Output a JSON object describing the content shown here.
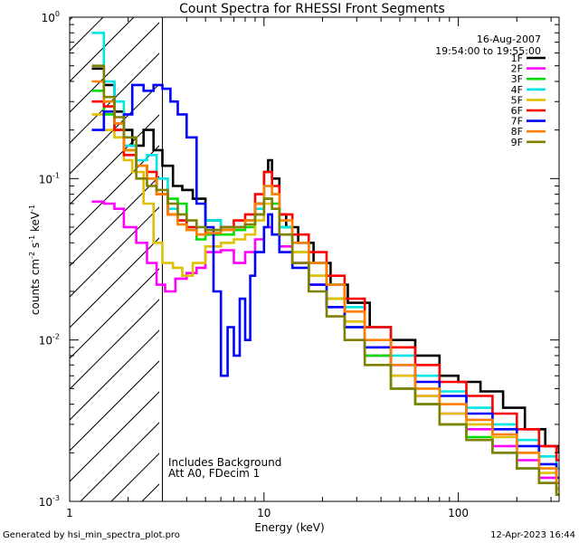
{
  "chart_data": {
    "type": "line",
    "title": "Count Spectra for RHESSI Front Segments",
    "xlabel": "Energy (keV)",
    "ylabel_parts": [
      "counts cm",
      "-2",
      " s",
      "-1",
      " keV",
      "-1"
    ],
    "xscale": "log",
    "yscale": "log",
    "xlim": [
      1,
      330
    ],
    "ylim": [
      0.001,
      1.0
    ],
    "x_ticks": [
      {
        "value": 10,
        "label": "10"
      },
      {
        "value": 100,
        "label": "100"
      }
    ],
    "y_ticks": [
      {
        "value": 0.001,
        "base": "10",
        "exp": "-3"
      },
      {
        "value": 0.01,
        "base": "10",
        "exp": "-2"
      },
      {
        "value": 0.1,
        "base": "10",
        "exp": "-1"
      },
      {
        "value": 1.0,
        "base": "10",
        "exp": "0"
      }
    ],
    "date": "16-Aug-2007",
    "time_range": "19:54:00 to 19:55:00",
    "hatch_region_max_kev": 3,
    "annotation_lines": [
      "Includes Background",
      "Att A0, FDecim 1"
    ],
    "footer_left": "Generated by hsi_min_spectra_plot.pro",
    "footer_right": "12-Apr-2023 16:44",
    "legend_position": "top-right",
    "series": [
      {
        "name": "1F",
        "color": "#000000",
        "values": [
          [
            1.3,
            0.48
          ],
          [
            1.5,
            0.38
          ],
          [
            1.7,
            0.26
          ],
          [
            1.9,
            0.2
          ],
          [
            2.1,
            0.16
          ],
          [
            2.4,
            0.2
          ],
          [
            2.7,
            0.15
          ],
          [
            3.0,
            0.12
          ],
          [
            3.4,
            0.09
          ],
          [
            3.8,
            0.085
          ],
          [
            4.3,
            0.075
          ],
          [
            5.0,
            0.055
          ],
          [
            6.0,
            0.05
          ],
          [
            7.0,
            0.05
          ],
          [
            8.0,
            0.055
          ],
          [
            9.0,
            0.07
          ],
          [
            10.0,
            0.11
          ],
          [
            10.5,
            0.13
          ],
          [
            11.0,
            0.1
          ],
          [
            12,
            0.06
          ],
          [
            13,
            0.05
          ],
          [
            15,
            0.04
          ],
          [
            18,
            0.03
          ],
          [
            22,
            0.022
          ],
          [
            27,
            0.017
          ],
          [
            35,
            0.012
          ],
          [
            45,
            0.01
          ],
          [
            60,
            0.008
          ],
          [
            80,
            0.006
          ],
          [
            100,
            0.0055
          ],
          [
            130,
            0.0048
          ],
          [
            170,
            0.0038
          ],
          [
            220,
            0.0028
          ],
          [
            280,
            0.0022
          ],
          [
            330,
            0.002
          ]
        ]
      },
      {
        "name": "2F",
        "color": "#ff00ff",
        "values": [
          [
            1.3,
            0.072
          ],
          [
            1.5,
            0.07
          ],
          [
            1.7,
            0.065
          ],
          [
            1.9,
            0.05
          ],
          [
            2.2,
            0.04
          ],
          [
            2.5,
            0.03
          ],
          [
            2.8,
            0.022
          ],
          [
            3.1,
            0.02
          ],
          [
            3.5,
            0.024
          ],
          [
            4.0,
            0.026
          ],
          [
            4.5,
            0.028
          ],
          [
            5.0,
            0.035
          ],
          [
            6.0,
            0.036
          ],
          [
            7.0,
            0.03
          ],
          [
            8.0,
            0.035
          ],
          [
            9.0,
            0.042
          ],
          [
            10.0,
            0.05
          ],
          [
            11,
            0.045
          ],
          [
            12,
            0.038
          ],
          [
            14,
            0.03
          ],
          [
            17,
            0.022
          ],
          [
            21,
            0.016
          ],
          [
            26,
            0.012
          ],
          [
            33,
            0.008
          ],
          [
            45,
            0.006
          ],
          [
            60,
            0.0045
          ],
          [
            80,
            0.0035
          ],
          [
            110,
            0.0028
          ],
          [
            150,
            0.0022
          ],
          [
            200,
            0.0018
          ],
          [
            260,
            0.0014
          ],
          [
            320,
            0.0012
          ]
        ]
      },
      {
        "name": "3F",
        "color": "#00dd00",
        "values": [
          [
            1.3,
            0.35
          ],
          [
            1.5,
            0.25
          ],
          [
            1.7,
            0.2
          ],
          [
            1.9,
            0.15
          ],
          [
            2.2,
            0.12
          ],
          [
            2.5,
            0.1
          ],
          [
            2.8,
            0.08
          ],
          [
            3.2,
            0.075
          ],
          [
            3.6,
            0.07
          ],
          [
            4.0,
            0.05
          ],
          [
            4.5,
            0.042
          ],
          [
            5.0,
            0.045
          ],
          [
            6.0,
            0.045
          ],
          [
            7.0,
            0.048
          ],
          [
            8.0,
            0.05
          ],
          [
            9.0,
            0.06
          ],
          [
            10.0,
            0.075
          ],
          [
            11,
            0.07
          ],
          [
            12,
            0.05
          ],
          [
            14,
            0.035
          ],
          [
            17,
            0.025
          ],
          [
            21,
            0.018
          ],
          [
            26,
            0.012
          ],
          [
            33,
            0.008
          ],
          [
            45,
            0.005
          ],
          [
            60,
            0.004
          ],
          [
            80,
            0.003
          ],
          [
            110,
            0.0025
          ],
          [
            150,
            0.002
          ],
          [
            200,
            0.0016
          ],
          [
            260,
            0.0013
          ],
          [
            320,
            0.0011
          ]
        ]
      },
      {
        "name": "4F",
        "color": "#00e5e5",
        "values": [
          [
            1.3,
            0.8
          ],
          [
            1.5,
            0.4
          ],
          [
            1.7,
            0.3
          ],
          [
            1.9,
            0.16
          ],
          [
            2.2,
            0.13
          ],
          [
            2.5,
            0.14
          ],
          [
            2.8,
            0.1
          ],
          [
            3.2,
            0.065
          ],
          [
            3.6,
            0.055
          ],
          [
            4.0,
            0.05
          ],
          [
            4.5,
            0.05
          ],
          [
            5.0,
            0.055
          ],
          [
            6.0,
            0.05
          ],
          [
            7.0,
            0.05
          ],
          [
            8.0,
            0.055
          ],
          [
            9.0,
            0.065
          ],
          [
            10.0,
            0.09
          ],
          [
            11,
            0.08
          ],
          [
            12,
            0.05
          ],
          [
            14,
            0.04
          ],
          [
            17,
            0.03
          ],
          [
            21,
            0.022
          ],
          [
            26,
            0.016
          ],
          [
            33,
            0.012
          ],
          [
            45,
            0.008
          ],
          [
            60,
            0.006
          ],
          [
            80,
            0.0048
          ],
          [
            110,
            0.0038
          ],
          [
            150,
            0.003
          ],
          [
            200,
            0.0024
          ],
          [
            260,
            0.0019
          ],
          [
            320,
            0.0016
          ]
        ]
      },
      {
        "name": "5F",
        "color": "#e0c000",
        "values": [
          [
            1.3,
            0.25
          ],
          [
            1.5,
            0.2
          ],
          [
            1.7,
            0.18
          ],
          [
            1.9,
            0.13
          ],
          [
            2.1,
            0.11
          ],
          [
            2.4,
            0.07
          ],
          [
            2.7,
            0.04
          ],
          [
            3.0,
            0.03
          ],
          [
            3.4,
            0.028
          ],
          [
            3.8,
            0.025
          ],
          [
            4.3,
            0.03
          ],
          [
            5.0,
            0.038
          ],
          [
            6.0,
            0.04
          ],
          [
            7.0,
            0.042
          ],
          [
            8.0,
            0.045
          ],
          [
            9.0,
            0.055
          ],
          [
            10.0,
            0.07
          ],
          [
            11,
            0.065
          ],
          [
            12,
            0.045
          ],
          [
            14,
            0.035
          ],
          [
            17,
            0.025
          ],
          [
            21,
            0.018
          ],
          [
            26,
            0.013
          ],
          [
            33,
            0.009
          ],
          [
            45,
            0.006
          ],
          [
            60,
            0.0045
          ],
          [
            80,
            0.0035
          ],
          [
            110,
            0.003
          ],
          [
            150,
            0.0025
          ],
          [
            200,
            0.002
          ],
          [
            260,
            0.0015
          ],
          [
            320,
            0.0012
          ]
        ]
      },
      {
        "name": "6F",
        "color": "#ff0000",
        "values": [
          [
            1.3,
            0.3
          ],
          [
            1.5,
            0.28
          ],
          [
            1.7,
            0.2
          ],
          [
            1.9,
            0.14
          ],
          [
            2.2,
            0.12
          ],
          [
            2.5,
            0.11
          ],
          [
            2.8,
            0.08
          ],
          [
            3.2,
            0.06
          ],
          [
            3.6,
            0.055
          ],
          [
            4.0,
            0.05
          ],
          [
            4.5,
            0.045
          ],
          [
            5.0,
            0.048
          ],
          [
            6.0,
            0.05
          ],
          [
            7.0,
            0.055
          ],
          [
            8.0,
            0.06
          ],
          [
            9.0,
            0.08
          ],
          [
            10.0,
            0.11
          ],
          [
            11,
            0.09
          ],
          [
            12,
            0.06
          ],
          [
            14,
            0.045
          ],
          [
            17,
            0.035
          ],
          [
            21,
            0.025
          ],
          [
            26,
            0.018
          ],
          [
            33,
            0.012
          ],
          [
            45,
            0.009
          ],
          [
            60,
            0.007
          ],
          [
            80,
            0.0055
          ],
          [
            110,
            0.0045
          ],
          [
            150,
            0.0035
          ],
          [
            200,
            0.0028
          ],
          [
            260,
            0.0022
          ],
          [
            320,
            0.0018
          ]
        ]
      },
      {
        "name": "7F",
        "color": "#0000ff",
        "values": [
          [
            1.3,
            0.2
          ],
          [
            1.5,
            0.26
          ],
          [
            1.7,
            0.22
          ],
          [
            1.9,
            0.25
          ],
          [
            2.1,
            0.38
          ],
          [
            2.4,
            0.35
          ],
          [
            2.7,
            0.38
          ],
          [
            3.0,
            0.36
          ],
          [
            3.3,
            0.3
          ],
          [
            3.6,
            0.25
          ],
          [
            4.0,
            0.18
          ],
          [
            4.5,
            0.07
          ],
          [
            5.0,
            0.05
          ],
          [
            5.5,
            0.02
          ],
          [
            6.0,
            0.006
          ],
          [
            6.5,
            0.012
          ],
          [
            7.0,
            0.008
          ],
          [
            7.5,
            0.018
          ],
          [
            8.0,
            0.01
          ],
          [
            8.5,
            0.025
          ],
          [
            9.0,
            0.035
          ],
          [
            10.0,
            0.05
          ],
          [
            10.5,
            0.06
          ],
          [
            11,
            0.045
          ],
          [
            12,
            0.035
          ],
          [
            14,
            0.028
          ],
          [
            17,
            0.022
          ],
          [
            21,
            0.016
          ],
          [
            26,
            0.012
          ],
          [
            33,
            0.009
          ],
          [
            45,
            0.007
          ],
          [
            60,
            0.0055
          ],
          [
            80,
            0.0045
          ],
          [
            110,
            0.0035
          ],
          [
            150,
            0.0028
          ],
          [
            200,
            0.0022
          ],
          [
            260,
            0.0017
          ],
          [
            320,
            0.0014
          ]
        ]
      },
      {
        "name": "8F",
        "color": "#ff8000",
        "values": [
          [
            1.3,
            0.4
          ],
          [
            1.5,
            0.3
          ],
          [
            1.7,
            0.22
          ],
          [
            1.9,
            0.15
          ],
          [
            2.2,
            0.12
          ],
          [
            2.5,
            0.1
          ],
          [
            2.8,
            0.08
          ],
          [
            3.2,
            0.06
          ],
          [
            3.6,
            0.052
          ],
          [
            4.0,
            0.048
          ],
          [
            4.5,
            0.045
          ],
          [
            5.0,
            0.046
          ],
          [
            6.0,
            0.048
          ],
          [
            7.0,
            0.05
          ],
          [
            8.0,
            0.055
          ],
          [
            9.0,
            0.07
          ],
          [
            10.0,
            0.09
          ],
          [
            11,
            0.08
          ],
          [
            12,
            0.055
          ],
          [
            14,
            0.04
          ],
          [
            17,
            0.03
          ],
          [
            21,
            0.022
          ],
          [
            26,
            0.015
          ],
          [
            33,
            0.01
          ],
          [
            45,
            0.007
          ],
          [
            60,
            0.005
          ],
          [
            80,
            0.004
          ],
          [
            110,
            0.0032
          ],
          [
            150,
            0.0026
          ],
          [
            200,
            0.002
          ],
          [
            260,
            0.0016
          ],
          [
            320,
            0.0013
          ]
        ]
      },
      {
        "name": "9F",
        "color": "#808000",
        "values": [
          [
            1.3,
            0.5
          ],
          [
            1.5,
            0.32
          ],
          [
            1.7,
            0.24
          ],
          [
            1.9,
            0.18
          ],
          [
            2.2,
            0.1
          ],
          [
            2.5,
            0.09
          ],
          [
            2.8,
            0.085
          ],
          [
            3.2,
            0.07
          ],
          [
            3.6,
            0.06
          ],
          [
            4.0,
            0.055
          ],
          [
            4.5,
            0.05
          ],
          [
            5.0,
            0.048
          ],
          [
            6.0,
            0.05
          ],
          [
            7.0,
            0.05
          ],
          [
            8.0,
            0.052
          ],
          [
            9.0,
            0.06
          ],
          [
            10.0,
            0.075
          ],
          [
            11,
            0.065
          ],
          [
            12,
            0.045
          ],
          [
            14,
            0.03
          ],
          [
            17,
            0.02
          ],
          [
            21,
            0.014
          ],
          [
            26,
            0.01
          ],
          [
            33,
            0.007
          ],
          [
            45,
            0.005
          ],
          [
            60,
            0.004
          ],
          [
            80,
            0.003
          ],
          [
            110,
            0.0024
          ],
          [
            150,
            0.002
          ],
          [
            200,
            0.0016
          ],
          [
            260,
            0.0013
          ],
          [
            320,
            0.0011
          ]
        ]
      }
    ]
  }
}
